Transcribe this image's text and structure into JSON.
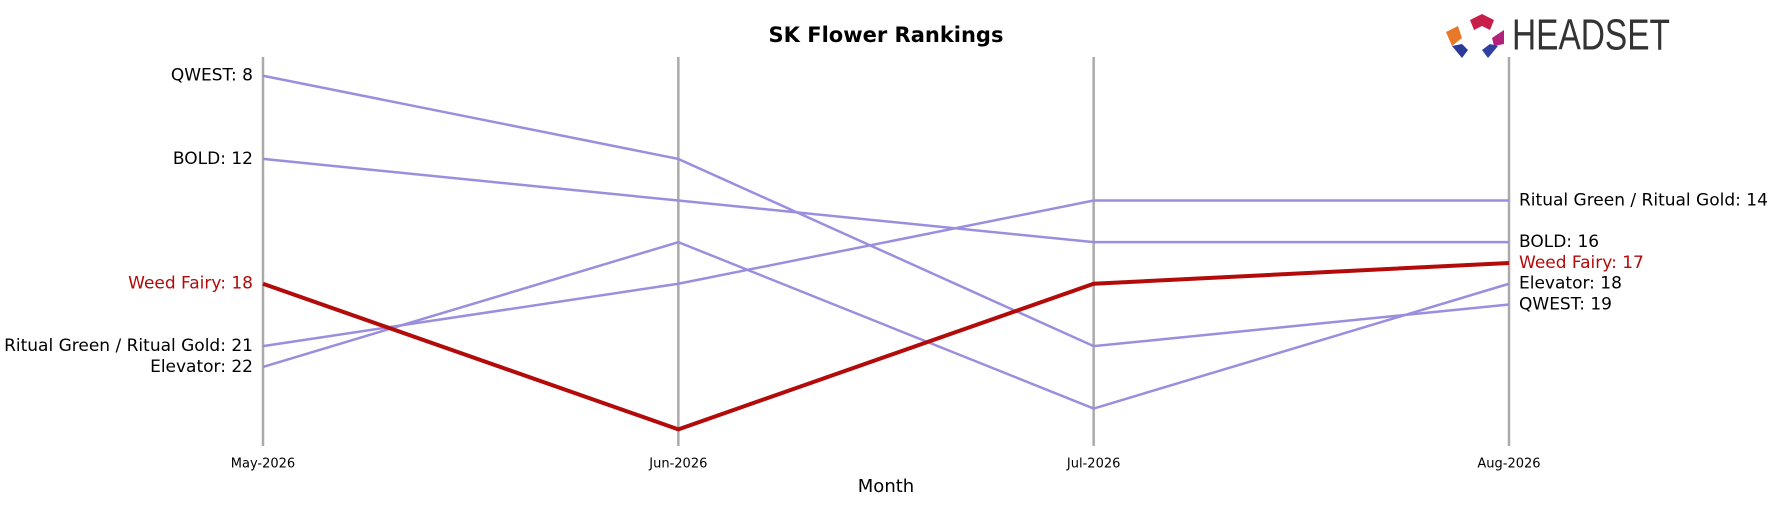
{
  "chart_data": {
    "type": "bump",
    "title": "SK Flower Rankings",
    "x_label": "Month",
    "logo": "HEADSET",
    "categories": [
      "May-2026",
      "Jun-2026",
      "Jul-2026",
      "Aug-2026"
    ],
    "ylim": [
      25.8,
      7.1
    ],
    "inverted": true,
    "series": [
      {
        "name": "QWEST",
        "color": "#9b8ede",
        "values": [
          8,
          12,
          21,
          19
        ],
        "start_label": "QWEST: 8",
        "end_label": "QWEST: 19",
        "highlight": false
      },
      {
        "name": "BOLD",
        "color": "#9b8ede",
        "values": [
          12,
          14,
          16,
          16
        ],
        "start_label": "BOLD: 12",
        "end_label": "BOLD: 16",
        "highlight": false
      },
      {
        "name": "Ritual Green / Ritual Gold",
        "color": "#9b8ede",
        "values": [
          21,
          18,
          14,
          14
        ],
        "start_label": "Ritual Green / Ritual Gold: 21",
        "end_label": "Ritual Green / Ritual Gold: 14",
        "highlight": false
      },
      {
        "name": "Elevator",
        "color": "#9b8ede",
        "values": [
          22,
          16,
          24,
          18
        ],
        "start_label": "Elevator: 22",
        "end_label": "Elevator: 18",
        "highlight": false
      },
      {
        "name": "Weed Fairy",
        "color": "#b30a0a",
        "values": [
          18,
          25,
          18,
          17
        ],
        "start_label": "Weed Fairy: 18",
        "end_label": "Weed Fairy: 17",
        "highlight": true
      }
    ]
  }
}
